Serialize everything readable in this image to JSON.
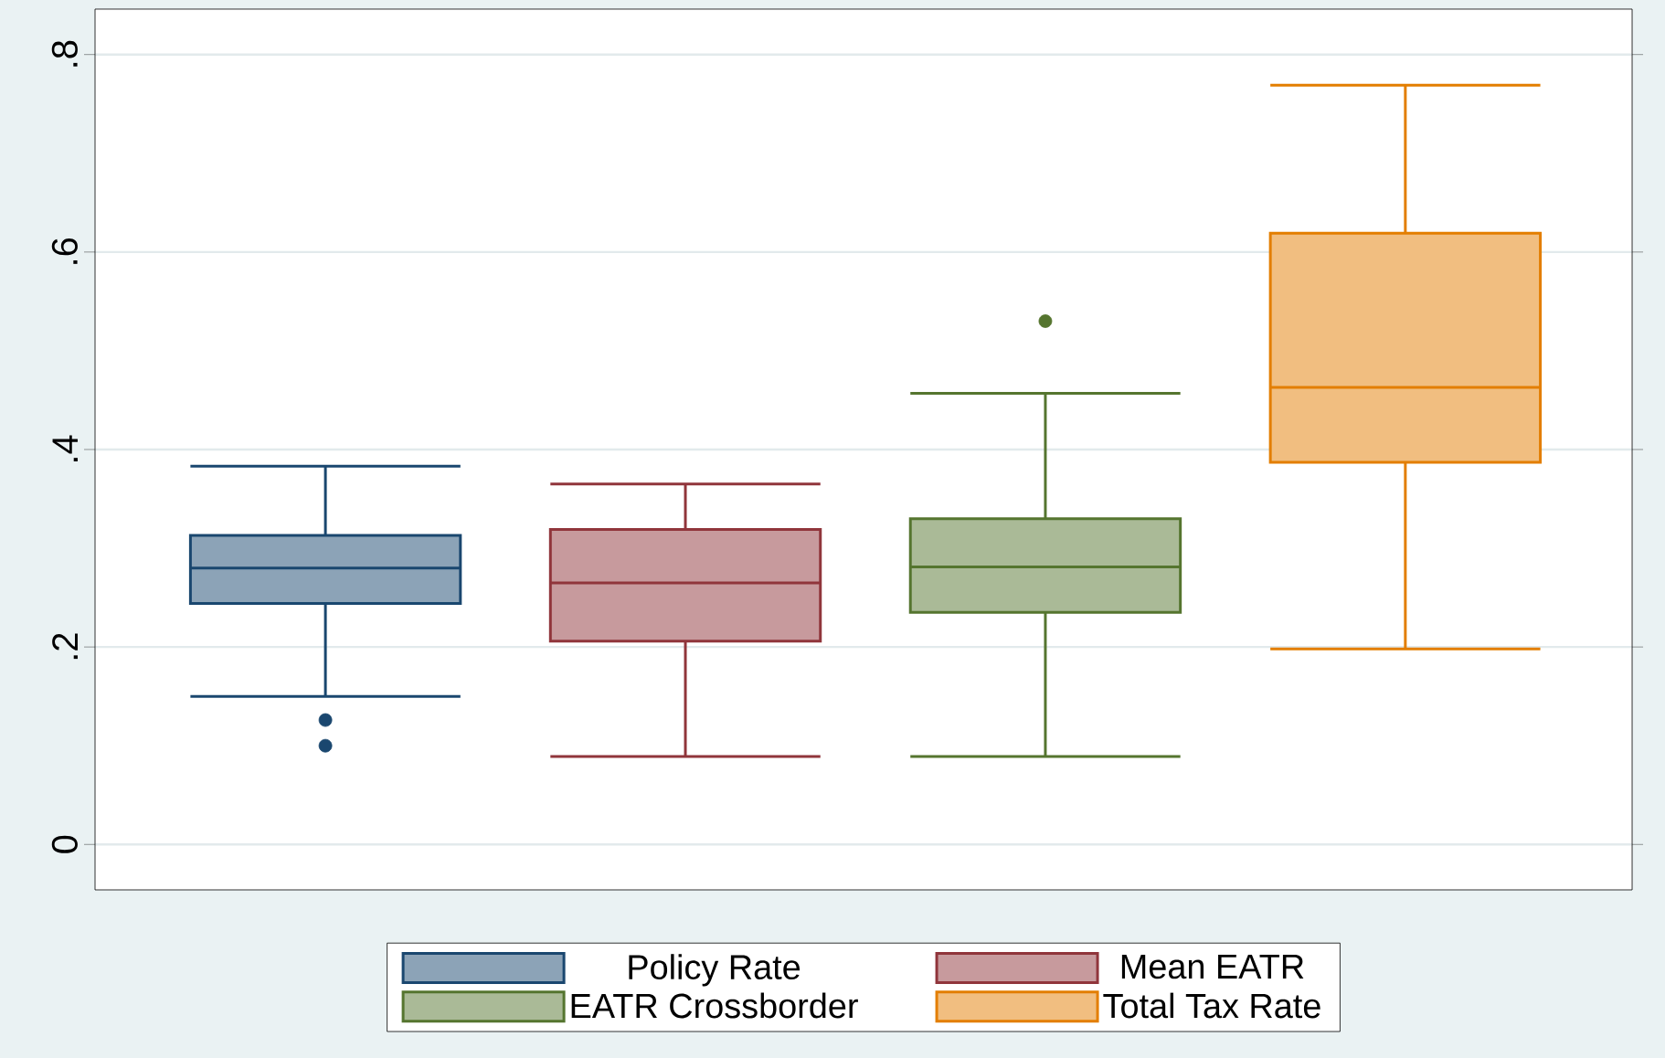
{
  "chart_data": {
    "type": "box",
    "categories": [
      null,
      null,
      null,
      null
    ],
    "series": [
      {
        "name": "Policy Rate",
        "color": "#1a476f",
        "boxes": [
          {
            "low": 0.15,
            "q1": 0.244,
            "median": 0.28,
            "q3": 0.313,
            "high": 0.383,
            "outliers": [
              0.126,
              0.1
            ]
          },
          null,
          null,
          null
        ]
      },
      {
        "name": "Mean EATR",
        "color": "#90353b",
        "boxes": [
          null,
          {
            "low": 0.089,
            "q1": 0.206,
            "median": 0.265,
            "q3": 0.319,
            "high": 0.365
          },
          null,
          null
        ]
      },
      {
        "name": "EATR Crossborder",
        "color": "#55752f",
        "boxes": [
          null,
          null,
          {
            "low": 0.089,
            "q1": 0.235,
            "median": 0.281,
            "q3": 0.33,
            "high": 0.457,
            "outliers": [
              0.53
            ]
          },
          null
        ]
      },
      {
        "name": "Total Tax Rate",
        "color": "#e37e00",
        "boxes": [
          null,
          null,
          null,
          {
            "low": 0.198,
            "q1": 0.387,
            "median": 0.463,
            "q3": 0.619,
            "high": 0.769
          }
        ]
      }
    ],
    "ylim": [
      -0.046,
      0.846
    ],
    "yticks": [
      {
        "value": 0,
        "label": "0"
      },
      {
        "value": 0.2,
        "label": ".2"
      },
      {
        "value": 0.4,
        "label": ".4"
      },
      {
        "value": 0.6,
        "label": ".6"
      },
      {
        "value": 0.8,
        "label": ".8"
      }
    ],
    "grid": "y",
    "legend": "bottom"
  }
}
